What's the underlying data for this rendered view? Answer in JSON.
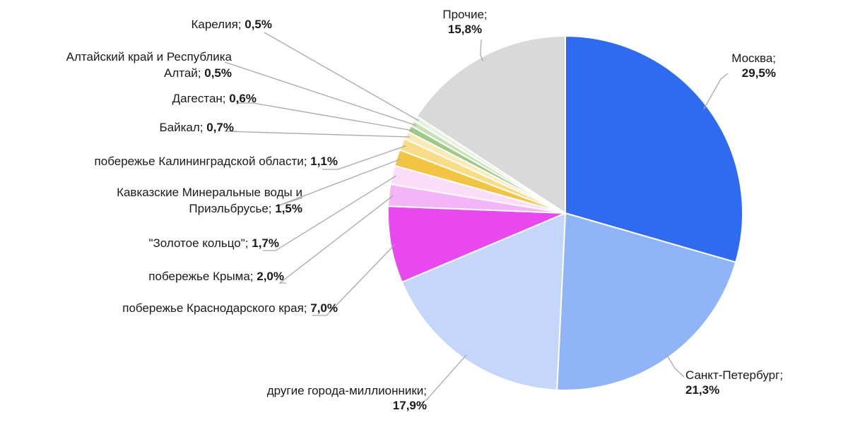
{
  "chart_data": {
    "type": "pie",
    "title": "",
    "legend": "none",
    "slices": [
      {
        "name": "Москва",
        "value": 29.5,
        "value_text": "29,5%",
        "color": "#2f6bf0"
      },
      {
        "name": "Санкт-Петербург",
        "value": 21.3,
        "value_text": "21,3%",
        "color": "#8fb4f8"
      },
      {
        "name": "другие города-миллионники",
        "value": 17.9,
        "value_text": "17,9%",
        "color": "#c4d7fb"
      },
      {
        "name": "побережье Краснодарского края",
        "value": 7.0,
        "value_text": "7,0%",
        "color": "#e947ef"
      },
      {
        "name": "побережье Крыма",
        "value": 2.0,
        "value_text": "2,0%",
        "color": "#f4b5f6"
      },
      {
        "name": "\"Золотое кольцо\"",
        "value": 1.7,
        "value_text": "1,7%",
        "color": "#fbdcfb"
      },
      {
        "name": "Кавказские Минеральные воды и Приэльбрусье",
        "value": 1.5,
        "value_text": "1,5%",
        "color": "#f3c441"
      },
      {
        "name": "побережье Калининградской области",
        "value": 1.1,
        "value_text": "1,1%",
        "color": "#f8dc86"
      },
      {
        "name": "Байкал",
        "value": 0.7,
        "value_text": "0,7%",
        "color": "#fbeab8"
      },
      {
        "name": "Дагестан",
        "value": 0.6,
        "value_text": "0,6%",
        "color": "#9dca84"
      },
      {
        "name": "Алтайский край и Республика Алтай",
        "value": 0.5,
        "value_text": "0,5%",
        "color": "#c6e2b3"
      },
      {
        "name": "Карелия",
        "value": 0.5,
        "value_text": "0,5%",
        "color": "#e8f3df"
      },
      {
        "name": "Прочие",
        "value": 15.8,
        "value_text": "15,8%",
        "color": "#d9d9d9"
      }
    ]
  }
}
